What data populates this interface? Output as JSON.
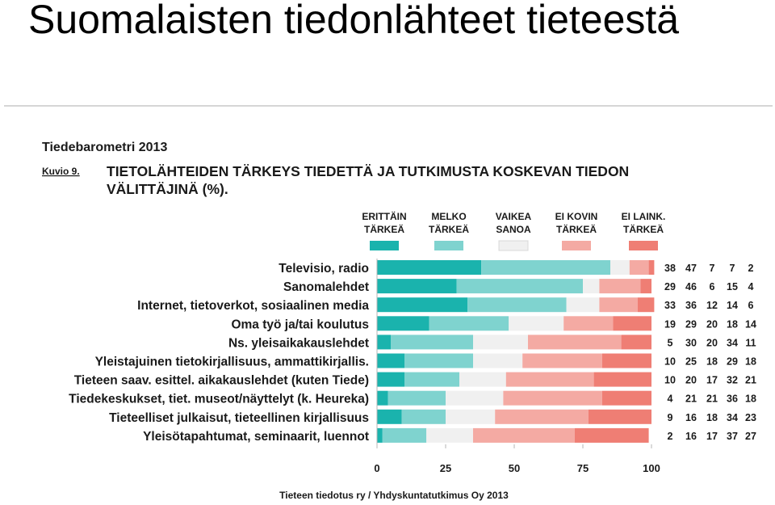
{
  "slide": {
    "title": "Suomalaisten tiedonlähteet tieteestä"
  },
  "figure": {
    "source_label": "Tiedebarometri 2013",
    "caption_label": "Kuvio 9.",
    "caption_line1": "TIETOLÄHTEIDEN TÄRKEYS TIEDETTÄ JA TUTKIMUSTA KOSKEVAN TIEDON",
    "caption_line2": "VÄLITTÄJINÄ (%).",
    "credit": "Tieteen tiedotus ry / Yhdyskuntatutkimus Oy 2013"
  },
  "chart_data": {
    "type": "bar",
    "stacked": true,
    "orientation": "horizontal",
    "categories": [
      "Televisio, radio",
      "Sanomalehdet",
      "Internet, tietoverkot, sosiaalinen media",
      "Oma työ ja/tai koulutus",
      "Ns. yleisaikakauslehdet",
      "Yleistajuinen tietokirjallisuus, ammattikirjallis.",
      "Tieteen saav. esittel. aikakauslehdet (kuten Tiede)",
      "Tiedekeskukset, tiet. museot/näyttelyt (k. Heureka)",
      "Tieteelliset julkaisut, tieteellinen kirjallisuus",
      "Yleisötapahtumat, seminaarit, luennot"
    ],
    "series": [
      {
        "name_lines": [
          "ERITTÄIN",
          "TÄRKEÄ"
        ],
        "color": "#1ab3ad",
        "values": [
          38,
          29,
          33,
          19,
          5,
          10,
          10,
          4,
          9,
          2
        ]
      },
      {
        "name_lines": [
          "MELKO",
          "TÄRKEÄ"
        ],
        "color": "#7fd3cf",
        "values": [
          47,
          46,
          36,
          29,
          30,
          25,
          20,
          21,
          16,
          16
        ]
      },
      {
        "name_lines": [
          "VAIKEA",
          "SANOA"
        ],
        "color": "#f0f0f0",
        "values": [
          7,
          6,
          12,
          20,
          20,
          18,
          17,
          21,
          18,
          17
        ]
      },
      {
        "name_lines": [
          "EI KOVIN",
          "TÄRKEÄ"
        ],
        "color": "#f4aaa3",
        "values": [
          7,
          15,
          14,
          18,
          34,
          29,
          32,
          36,
          34,
          37
        ]
      },
      {
        "name_lines": [
          "EI LAINK.",
          "TÄRKEÄ"
        ],
        "color": "#ef7e74",
        "values": [
          2,
          4,
          6,
          14,
          11,
          18,
          21,
          18,
          23,
          27
        ]
      }
    ],
    "xlim": [
      0,
      100
    ],
    "xticks": [
      "0",
      "25",
      "50",
      "75",
      "100"
    ],
    "grid": false,
    "legend_position": "top"
  }
}
